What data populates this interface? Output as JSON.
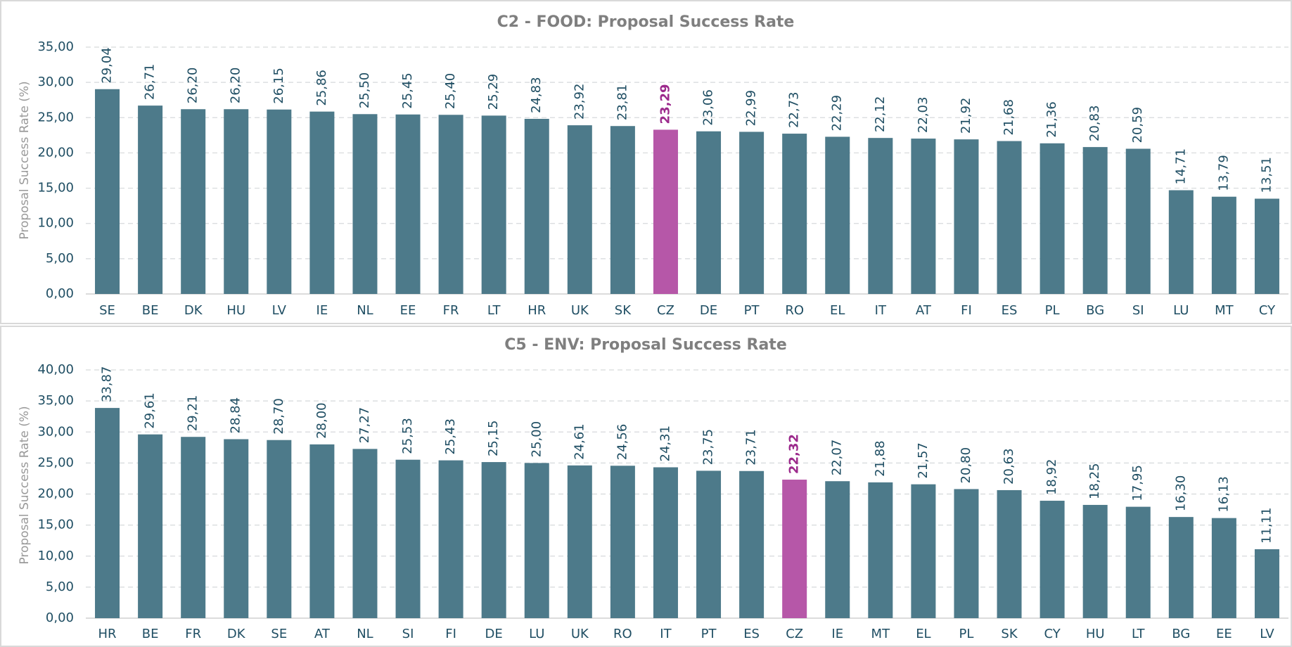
{
  "chart_data": [
    {
      "type": "bar",
      "title": "C2 - FOOD: Proposal Success Rate",
      "y_label": "Proposal Success Rate (%)",
      "categories": [
        "SE",
        "BE",
        "DK",
        "HU",
        "LV",
        "IE",
        "NL",
        "EE",
        "FR",
        "LT",
        "HR",
        "UK",
        "SK",
        "CZ",
        "DE",
        "PT",
        "RO",
        "EL",
        "IT",
        "AT",
        "FI",
        "ES",
        "PL",
        "BG",
        "SI",
        "LU",
        "MT",
        "CY"
      ],
      "values": [
        29.04,
        26.71,
        26.2,
        26.2,
        26.15,
        25.86,
        25.5,
        25.45,
        25.4,
        25.29,
        24.83,
        23.92,
        23.81,
        23.29,
        23.06,
        22.99,
        22.73,
        22.29,
        22.12,
        22.03,
        21.92,
        21.68,
        21.36,
        20.83,
        20.59,
        14.71,
        13.79,
        13.51
      ],
      "value_labels": [
        "29,04",
        "26,71",
        "26,20",
        "26,20",
        "26,15",
        "25,86",
        "25,50",
        "25,45",
        "25,40",
        "25,29",
        "24,83",
        "23,92",
        "23,81",
        "23,29",
        "23,06",
        "22,99",
        "22,73",
        "22,29",
        "22,12",
        "22,03",
        "21,92",
        "21,68",
        "21,36",
        "20,83",
        "20,59",
        "14,71",
        "13,79",
        "13,51"
      ],
      "colors": [
        "#4d7a8a",
        "#4d7a8a",
        "#4d7a8a",
        "#4d7a8a",
        "#4d7a8a",
        "#4d7a8a",
        "#4d7a8a",
        "#4d7a8a",
        "#4d7a8a",
        "#4d7a8a",
        "#4d7a8a",
        "#4d7a8a",
        "#4d7a8a",
        "#b657a8",
        "#4d7a8a",
        "#4d7a8a",
        "#4d7a8a",
        "#4d7a8a",
        "#4d7a8a",
        "#4d7a8a",
        "#4d7a8a",
        "#4d7a8a",
        "#4d7a8a",
        "#4d7a8a",
        "#4d7a8a",
        "#4d7a8a",
        "#4d7a8a",
        "#4d7a8a"
      ],
      "value_label_colors": [
        "#1f4e63",
        "#1f4e63",
        "#1f4e63",
        "#1f4e63",
        "#1f4e63",
        "#1f4e63",
        "#1f4e63",
        "#1f4e63",
        "#1f4e63",
        "#1f4e63",
        "#1f4e63",
        "#1f4e63",
        "#1f4e63",
        "#9c2a8c",
        "#1f4e63",
        "#1f4e63",
        "#1f4e63",
        "#1f4e63",
        "#1f4e63",
        "#1f4e63",
        "#1f4e63",
        "#1f4e63",
        "#1f4e63",
        "#1f4e63",
        "#1f4e63",
        "#1f4e63",
        "#1f4e63",
        "#1f4e63"
      ],
      "ylim": [
        0,
        35
      ],
      "yticks": [
        {
          "value": 0,
          "label": "0,00"
        },
        {
          "value": 5,
          "label": "5,00"
        },
        {
          "value": 10,
          "label": "10,00"
        },
        {
          "value": 15,
          "label": "15,00"
        },
        {
          "value": 20,
          "label": "20,00"
        },
        {
          "value": 25,
          "label": "25,00"
        },
        {
          "value": 30,
          "label": "30,00"
        },
        {
          "value": 35,
          "label": "35,00"
        }
      ],
      "grid": true
    },
    {
      "type": "bar",
      "title": "C5 - ENV: Proposal Success Rate",
      "y_label": "Proposal Success Rate (%)",
      "categories": [
        "HR",
        "BE",
        "FR",
        "DK",
        "SE",
        "AT",
        "NL",
        "SI",
        "FI",
        "DE",
        "LU",
        "UK",
        "RO",
        "IT",
        "PT",
        "ES",
        "CZ",
        "IE",
        "MT",
        "EL",
        "PL",
        "SK",
        "CY",
        "HU",
        "LT",
        "BG",
        "EE",
        "LV"
      ],
      "values": [
        33.87,
        29.61,
        29.21,
        28.84,
        28.7,
        28.0,
        27.27,
        25.53,
        25.43,
        25.15,
        25.0,
        24.61,
        24.56,
        24.31,
        23.75,
        23.71,
        22.32,
        22.07,
        21.88,
        21.57,
        20.8,
        20.63,
        18.92,
        18.25,
        17.95,
        16.3,
        16.13,
        11.11
      ],
      "value_labels": [
        "33,87",
        "29,61",
        "29,21",
        "28,84",
        "28,70",
        "28,00",
        "27,27",
        "25,53",
        "25,43",
        "25,15",
        "25,00",
        "24,61",
        "24,56",
        "24,31",
        "23,75",
        "23,71",
        "22,32",
        "22,07",
        "21,88",
        "21,57",
        "20,80",
        "20,63",
        "18,92",
        "18,25",
        "17,95",
        "16,30",
        "16,13",
        "11,11"
      ],
      "colors": [
        "#4d7a8a",
        "#4d7a8a",
        "#4d7a8a",
        "#4d7a8a",
        "#4d7a8a",
        "#4d7a8a",
        "#4d7a8a",
        "#4d7a8a",
        "#4d7a8a",
        "#4d7a8a",
        "#4d7a8a",
        "#4d7a8a",
        "#4d7a8a",
        "#4d7a8a",
        "#4d7a8a",
        "#4d7a8a",
        "#b657a8",
        "#4d7a8a",
        "#4d7a8a",
        "#4d7a8a",
        "#4d7a8a",
        "#4d7a8a",
        "#4d7a8a",
        "#4d7a8a",
        "#4d7a8a",
        "#4d7a8a",
        "#4d7a8a",
        "#4d7a8a"
      ],
      "value_label_colors": [
        "#1f4e63",
        "#1f4e63",
        "#1f4e63",
        "#1f4e63",
        "#1f4e63",
        "#1f4e63",
        "#1f4e63",
        "#1f4e63",
        "#1f4e63",
        "#1f4e63",
        "#1f4e63",
        "#1f4e63",
        "#1f4e63",
        "#1f4e63",
        "#1f4e63",
        "#1f4e63",
        "#9c2a8c",
        "#1f4e63",
        "#1f4e63",
        "#1f4e63",
        "#1f4e63",
        "#1f4e63",
        "#1f4e63",
        "#1f4e63",
        "#1f4e63",
        "#1f4e63",
        "#1f4e63",
        "#1f4e63"
      ],
      "ylim": [
        0,
        40
      ],
      "yticks": [
        {
          "value": 0,
          "label": "0,00"
        },
        {
          "value": 5,
          "label": "5,00"
        },
        {
          "value": 10,
          "label": "10,00"
        },
        {
          "value": 15,
          "label": "15,00"
        },
        {
          "value": 20,
          "label": "20,00"
        },
        {
          "value": 25,
          "label": "25,00"
        },
        {
          "value": 30,
          "label": "30,00"
        },
        {
          "value": 35,
          "label": "35,00"
        },
        {
          "value": 40,
          "label": "40,00"
        }
      ],
      "grid": true
    }
  ]
}
